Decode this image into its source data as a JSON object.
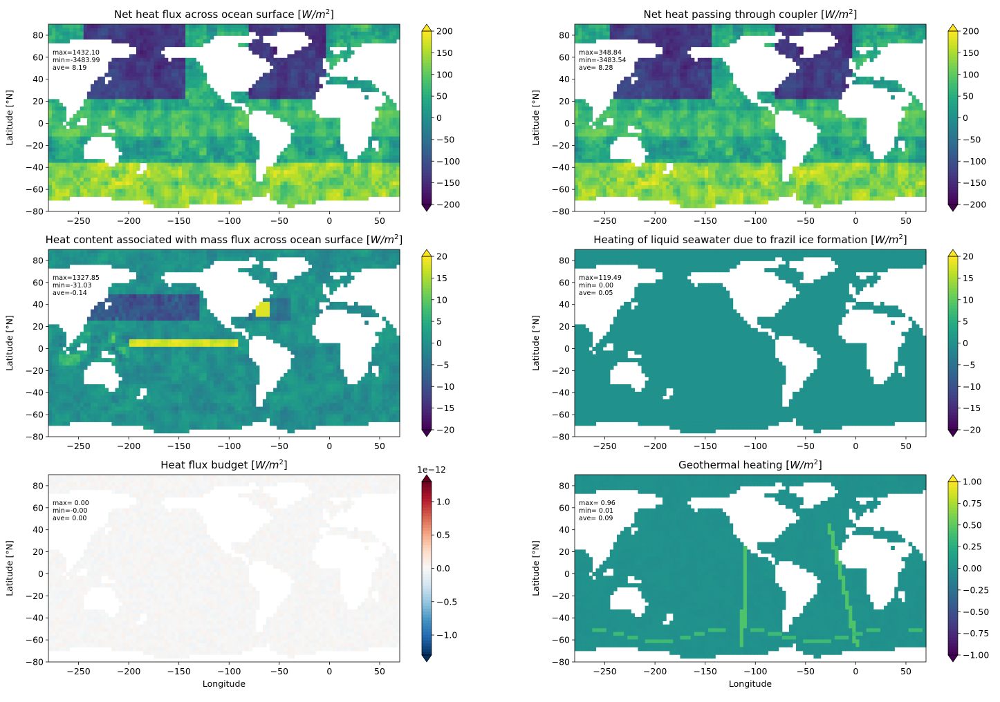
{
  "figure": {
    "ylabel": "Latitude [°N]",
    "xlabel": "Longitude",
    "xticks": [
      -250,
      -200,
      -150,
      -100,
      -50,
      0,
      50
    ],
    "yticks": [
      -80,
      -60,
      -40,
      -20,
      0,
      20,
      40,
      60,
      80
    ],
    "xlim": [
      -280,
      70
    ],
    "ylim": [
      -80,
      90
    ]
  },
  "colors": {
    "land": "#ffffff",
    "ocean_viridis_mid": "#21918c",
    "viridis_low": "#440154",
    "viridis_high": "#fde725",
    "rdbu_low": "#053061",
    "rdbu_mid": "#f7f7f7",
    "rdbu_high": "#67001f"
  },
  "chart_data": [
    {
      "type": "heatmap",
      "title_text": "Net heat flux across ocean surface [",
      "title_unit": "W/m",
      "title_sup": "2",
      "title_close": "]",
      "stats": [
        "max=1432.10",
        "min=-3483.99",
        "ave= 8.19"
      ],
      "colormap": "viridis",
      "clim": [
        -200,
        200
      ],
      "cbar_ticks": [
        "200",
        "150",
        "100",
        "50",
        "0",
        "−50",
        "−100",
        "−150",
        "−200"
      ],
      "field": "surface_flux",
      "show_xlabel": false
    },
    {
      "type": "heatmap",
      "title_text": "Net heat passing through coupler [",
      "title_unit": "W/m",
      "title_sup": "2",
      "title_close": "]",
      "stats": [
        "max=348.84",
        "min=-3483.54",
        "ave= 8.28"
      ],
      "colormap": "viridis",
      "clim": [
        -200,
        200
      ],
      "cbar_ticks": [
        "200",
        "150",
        "100",
        "50",
        "0",
        "−50",
        "−100",
        "−150",
        "−200"
      ],
      "field": "surface_flux",
      "show_xlabel": false
    },
    {
      "type": "heatmap",
      "title_text": "Heat content associated with mass flux across ocean surface [",
      "title_unit": "W/m",
      "title_sup": "2",
      "title_close": "]",
      "stats": [
        "max=1327.85",
        "min=-31.03",
        "ave=-0.14"
      ],
      "colormap": "viridis",
      "clim": [
        -20,
        20
      ],
      "cbar_ticks": [
        "20",
        "15",
        "10",
        "5",
        "0",
        "−5",
        "−10",
        "−15",
        "−20"
      ],
      "field": "mass_flux",
      "show_xlabel": false
    },
    {
      "type": "heatmap",
      "title_text": "Heating of liquid seawater due to frazil ice formation [",
      "title_unit": "W/m",
      "title_sup": "2",
      "title_close": "]",
      "stats": [
        "max=119.49",
        "min= 0.00",
        "ave= 0.05"
      ],
      "colormap": "viridis",
      "clim": [
        -20,
        20
      ],
      "cbar_ticks": [
        "20",
        "15",
        "10",
        "5",
        "0",
        "−5",
        "−10",
        "−15",
        "−20"
      ],
      "field": "frazil",
      "show_xlabel": false
    },
    {
      "type": "heatmap",
      "title_text": "Heat flux budget [",
      "title_unit": "W/m",
      "title_sup": "2",
      "title_close": "]",
      "stats": [
        "max= 0.00",
        "min=-0.00",
        "ave= 0.00"
      ],
      "colormap": "RdBu_r",
      "clim": [
        -1.3e-12,
        1.3e-12
      ],
      "cbar_offset": "1e−12",
      "cbar_ticks": [
        "1.0",
        "0.5",
        "0.0",
        "−0.5",
        "−1.0"
      ],
      "field": "budget",
      "show_xlabel": true
    },
    {
      "type": "heatmap",
      "title_text": "Geothermal heating [",
      "title_unit": "W/m",
      "title_sup": "2",
      "title_close": "]",
      "stats": [
        "max= 0.96",
        "min= 0.01",
        "ave= 0.09"
      ],
      "colormap": "viridis",
      "clim": [
        -1,
        1
      ],
      "cbar_ticks": [
        "1.00",
        "0.75",
        "0.50",
        "0.25",
        "0.00",
        "−0.25",
        "−0.50",
        "−0.75",
        "−1.00"
      ],
      "field": "geothermal",
      "show_xlabel": true
    }
  ]
}
